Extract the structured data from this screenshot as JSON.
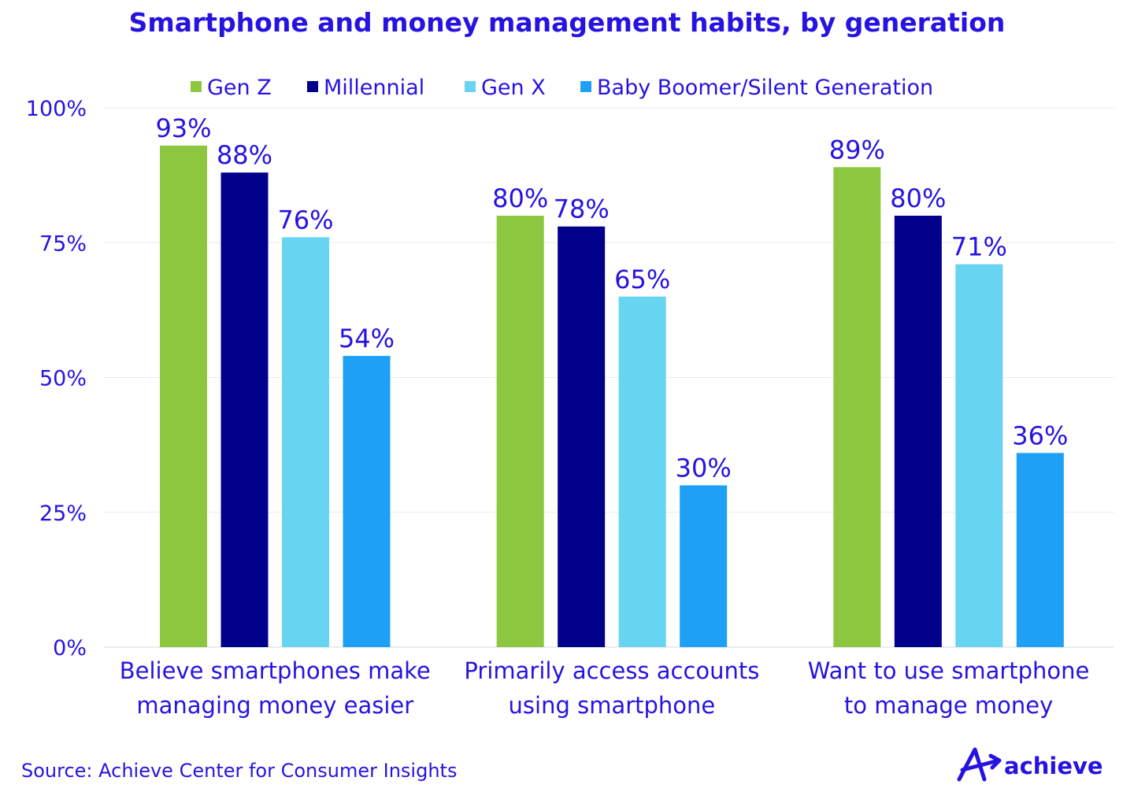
{
  "chart_data": {
    "type": "bar",
    "title": "Smartphone and money management habits, by generation",
    "categories": [
      [
        "Believe smartphones make",
        "managing money easier"
      ],
      [
        "Primarily access accounts",
        "using smartphone"
      ],
      [
        "Want to use smartphone",
        "to manage money"
      ]
    ],
    "series": [
      {
        "name": "Gen Z",
        "color": "#8dc63f",
        "values": [
          93,
          80,
          89
        ],
        "labels": [
          "93%",
          "80%",
          "89%"
        ]
      },
      {
        "name": "Millennial",
        "color": "#00008b",
        "values": [
          88,
          78,
          80
        ],
        "labels": [
          "88%",
          "78%",
          "80%"
        ]
      },
      {
        "name": "Gen X",
        "color": "#67d4f2",
        "values": [
          76,
          65,
          71
        ],
        "labels": [
          "76%",
          "65%",
          "71%"
        ]
      },
      {
        "name": "Baby Boomer/Silent Generation",
        "color": "#1ea0f7",
        "values": [
          54,
          30,
          36
        ],
        "labels": [
          "54%",
          "30%",
          "36%"
        ]
      }
    ],
    "ylim": [
      0,
      100
    ],
    "yticks": [
      0,
      25,
      50,
      75,
      100
    ],
    "ytick_labels": [
      "0%",
      "25%",
      "50%",
      "75%",
      "100%"
    ],
    "xlabel": "",
    "ylabel": "",
    "grid": true,
    "legend": "top"
  },
  "source": "Source: Achieve Center for Consumer Insights",
  "logo": {
    "text": "achieve",
    "icon": "achieve-a-arrow-icon"
  },
  "colors": {
    "text": "#2613e0"
  }
}
